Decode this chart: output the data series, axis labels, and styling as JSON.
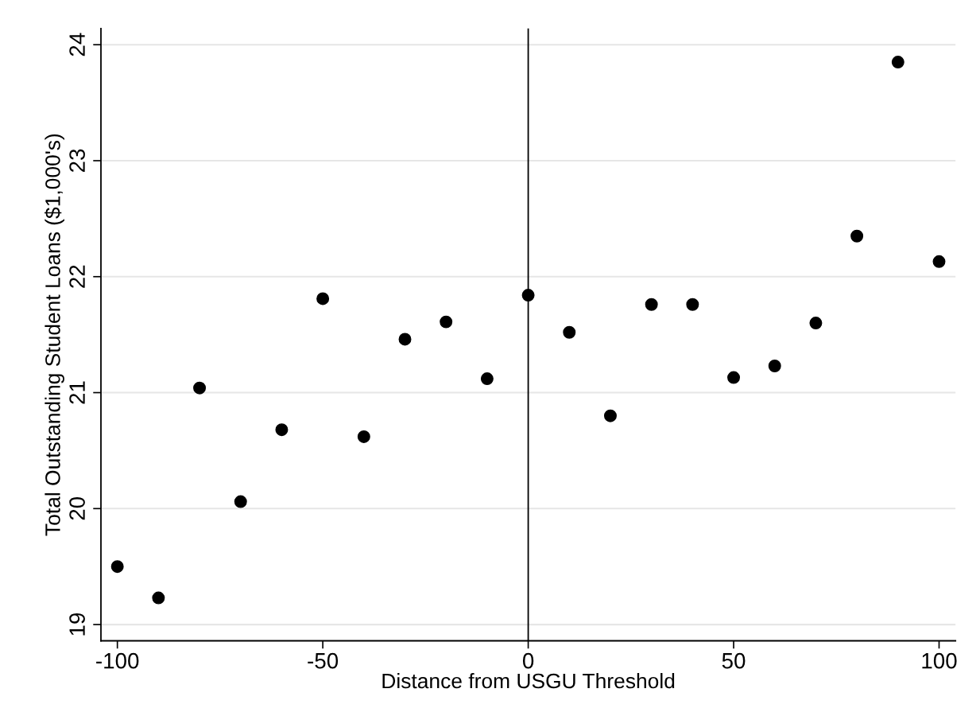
{
  "chart_data": {
    "type": "scatter",
    "xlabel": "Distance from USGU Threshold",
    "ylabel": "Total Outstanding Student Loans ($1,000's)",
    "x": [
      -100,
      -90,
      -80,
      -70,
      -60,
      -50,
      -40,
      -30,
      -20,
      -10,
      0,
      10,
      20,
      30,
      40,
      50,
      60,
      70,
      80,
      90,
      100
    ],
    "series": [
      {
        "color": "#000000",
        "values": [
          19.5,
          19.23,
          21.04,
          20.06,
          20.68,
          21.81,
          20.62,
          21.46,
          21.61,
          21.12,
          21.84,
          21.52,
          20.8,
          21.76,
          21.76,
          21.13,
          21.23,
          21.6,
          22.35,
          23.85,
          22.13
        ]
      }
    ],
    "xlim": [
      -104,
      104
    ],
    "ylim": [
      18.86,
      24.14
    ],
    "xticks": [
      -100,
      -50,
      0,
      50,
      100
    ],
    "yticks": [
      19,
      20,
      21,
      22,
      23,
      24
    ],
    "ref_lines": [
      {
        "axis": "x",
        "value": 0,
        "color": "#000000"
      }
    ],
    "grid": "y",
    "marker": "circle"
  }
}
